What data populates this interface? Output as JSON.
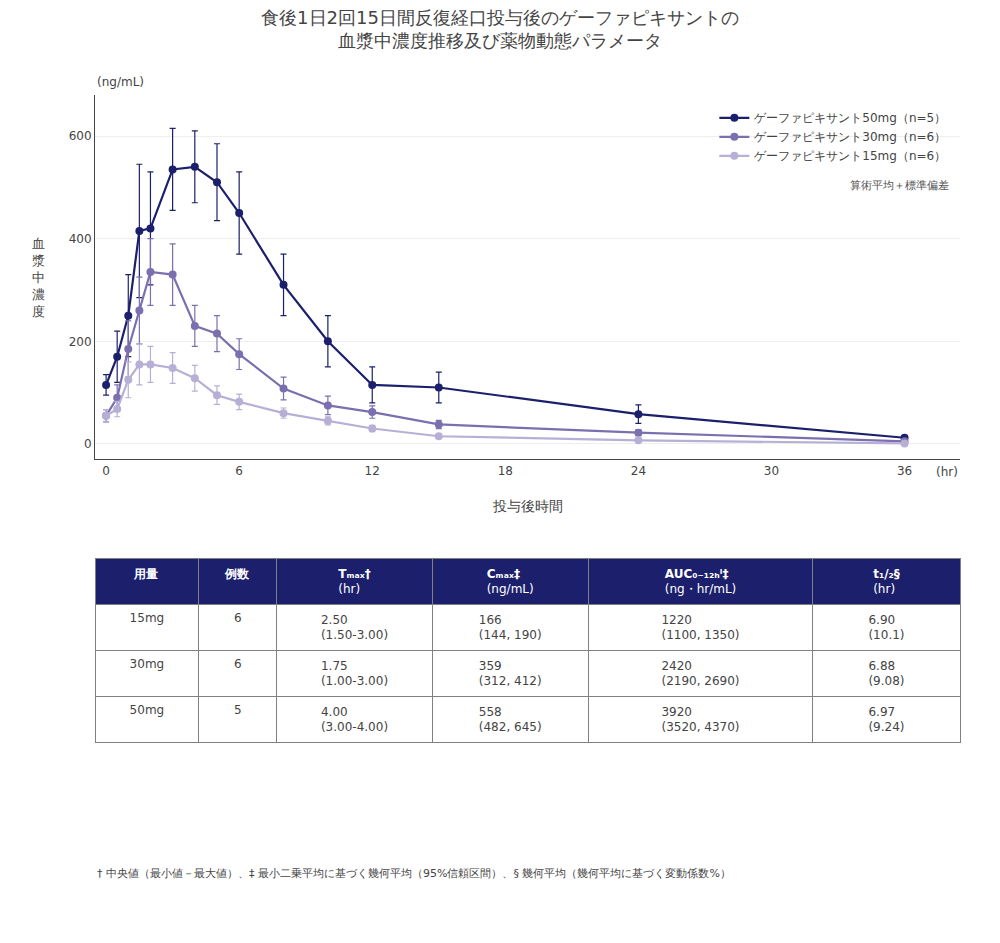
{
  "chart_data": {
    "type": "line",
    "title": "食後1日2回15日間反復経口投与後のゲーファピキサントの\n血漿中濃度推移及び薬物動態パラメータ",
    "xlabel": "投与後時間",
    "ylabel": "血漿中濃度",
    "yunits": "(ng/mL)",
    "xunits": "(hr)",
    "note": "算術平均＋標準偏差",
    "xlim": [
      -0.5,
      38.5
    ],
    "ylim": [
      -30,
      680
    ],
    "xticks": [
      0,
      6,
      12,
      18,
      24,
      30,
      36
    ],
    "yticks": [
      0,
      200,
      400,
      600
    ],
    "grid": "y",
    "legend": "upper right",
    "marker": "o",
    "line_style": "solid",
    "series": [
      {
        "name": "ゲーファピキサント50mg（n=5）",
        "color": "#1c1f6b",
        "x": [
          0,
          0.5,
          1,
          1.5,
          2,
          3,
          4,
          5,
          6,
          8,
          10,
          12,
          15,
          24,
          36
        ],
        "values": [
          115,
          170,
          250,
          415,
          420,
          535,
          540,
          510,
          450,
          310,
          200,
          115,
          110,
          58,
          12
        ],
        "yerr": [
          20,
          50,
          80,
          130,
          110,
          80,
          70,
          75,
          80,
          60,
          50,
          35,
          30,
          18,
          4
        ]
      },
      {
        "name": "ゲーファピキサント30mg（n=6）",
        "color": "#7b6faf",
        "x": [
          0,
          0.5,
          1,
          1.5,
          2,
          3,
          4,
          5,
          6,
          8,
          10,
          12,
          15,
          24,
          36
        ],
        "values": [
          55,
          90,
          185,
          260,
          335,
          330,
          230,
          215,
          175,
          108,
          75,
          62,
          38,
          22,
          5
        ],
        "yerr": [
          12,
          25,
          55,
          65,
          65,
          60,
          40,
          35,
          30,
          22,
          18,
          12,
          8,
          6,
          2
        ]
      },
      {
        "name": "ゲーファピキサント15mg（n=6）",
        "color": "#b8afd6",
        "x": [
          0,
          0.5,
          1,
          1.5,
          2,
          3,
          4,
          5,
          6,
          8,
          10,
          12,
          15,
          24,
          36
        ],
        "values": [
          55,
          68,
          125,
          155,
          155,
          148,
          128,
          95,
          82,
          60,
          45,
          30,
          15,
          7,
          1
        ],
        "yerr": [
          12,
          15,
          35,
          40,
          35,
          30,
          25,
          18,
          15,
          10,
          8,
          6,
          4,
          2,
          1
        ]
      }
    ],
    "table": {
      "header": [
        "用量",
        "例数",
        "Tₘₐₓ†",
        "Cₘₐₓ‡",
        "AUC₀₋₁₂ₕⁱ‡",
        "t₁/₂§"
      ],
      "header_units": [
        null,
        null,
        "(hr)",
        "(ng/mL)",
        "(ng・hr/mL)",
        "(hr)"
      ],
      "rows": [
        [
          "15mg",
          "6",
          "2.50\n(1.50-3.00)",
          "166\n(144, 190)",
          "1220\n(1100, 1350)",
          "6.90\n(10.1)"
        ],
        [
          "30mg",
          "6",
          "1.75\n(1.00-3.00)",
          "359\n(312, 412)",
          "2420\n(2190, 2690)",
          "6.88\n(9.08)"
        ],
        [
          "50mg",
          "5",
          "4.00\n(3.00-4.00)",
          "558\n(482, 645)",
          "3920\n(3520, 4370)",
          "6.97\n(9.24)"
        ]
      ]
    },
    "footnote": "† 中央値（最小値－最大値）、‡ 最小二乗平均に基づく幾何平均（95%信頼区間）、§ 幾何平均（幾何平均に基づく変動係数%）"
  }
}
